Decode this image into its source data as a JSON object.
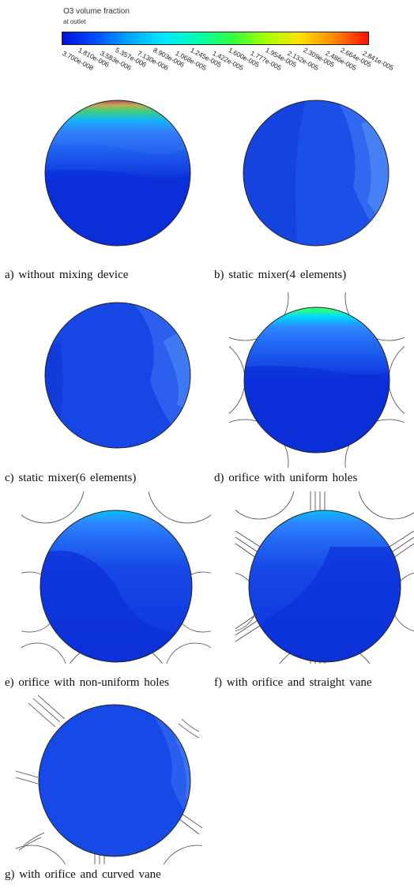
{
  "legend": {
    "title": "O3 volume fraction",
    "subtitle": "at outlet",
    "gradient": [
      "#0010d8",
      "#0050ff",
      "#00a8ff",
      "#00e8ff",
      "#00ffb0",
      "#30ff40",
      "#a8ff00",
      "#ffe000",
      "#ff8800",
      "#ff1000"
    ],
    "ticks": [
      "3.700e-008",
      "1.810e-006",
      "3.583e-006",
      "5.357e-006",
      "7.130e-006",
      "8.903e-006",
      "1.068e-005",
      "1.245e-005",
      "1.422e-005",
      "1.600e-005",
      "1.777e-005",
      "1.954e-005",
      "2.132e-005",
      "2.309e-005",
      "2.486e-005",
      "2.664e-005",
      "2.841e-005"
    ]
  },
  "colors": {
    "deep_blue": "#0a2fd8",
    "mid_blue": "#1748e6",
    "light_blue": "#3b72f2",
    "outline": "#222222"
  },
  "panels": [
    {
      "id": "a",
      "caption": "a)  without mixing device",
      "overlay": "none",
      "hot_top": "red"
    },
    {
      "id": "b",
      "caption": "b)  static mixer(4 elements)",
      "overlay": "none",
      "hot_top": "none"
    },
    {
      "id": "c",
      "caption": "c)  static mixer(6 elements)",
      "overlay": "none",
      "hot_top": "none"
    },
    {
      "id": "d",
      "caption": "d)  orifice with uniform holes",
      "overlay": "uniform-holes",
      "hot_top": "green"
    },
    {
      "id": "e",
      "caption": "e)  orifice with non-uniform holes",
      "overlay": "nonuniform-holes",
      "hot_top": "cyan"
    },
    {
      "id": "f",
      "caption": "f)  with orifice and straight vane",
      "overlay": "straight-vanes",
      "hot_top": "cyan"
    },
    {
      "id": "g",
      "caption": "g)  with orifice and curved vane",
      "overlay": "curved-vanes",
      "hot_top": "none"
    }
  ]
}
